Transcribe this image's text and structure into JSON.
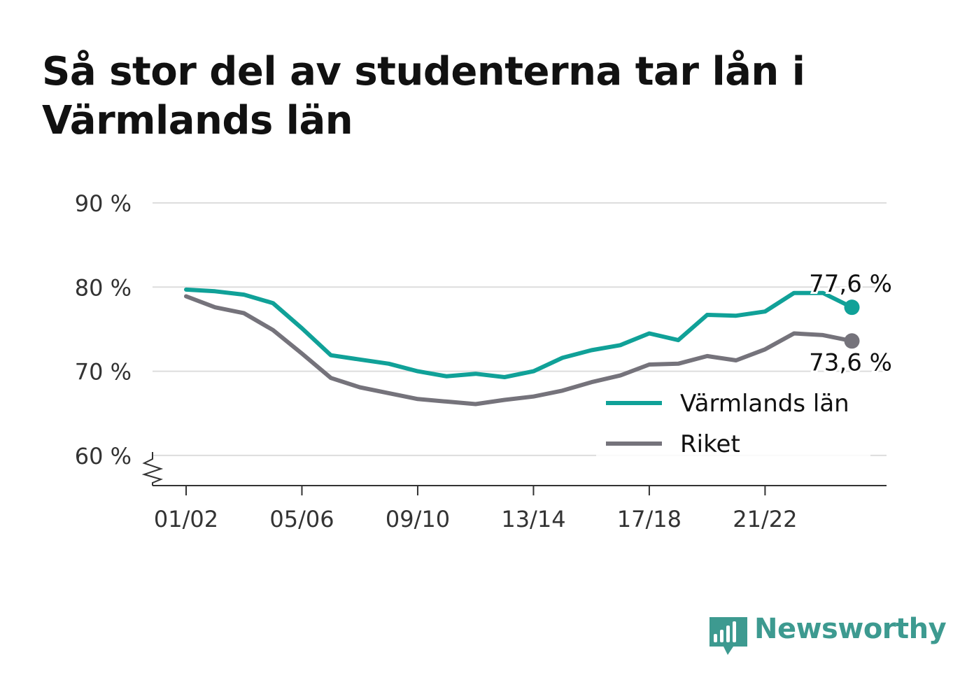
{
  "title": "Så stor del av studenterna tar lån i Värmlands län",
  "brand": "Newsworthy",
  "chart_data": {
    "type": "line",
    "title": "Så stor del av studenterna tar lån i Värmlands län",
    "x": [
      "01/02",
      "02/03",
      "03/04",
      "04/05",
      "05/06",
      "06/07",
      "07/08",
      "08/09",
      "09/10",
      "10/11",
      "11/12",
      "12/13",
      "13/14",
      "14/15",
      "15/16",
      "16/17",
      "17/18",
      "18/19",
      "19/20",
      "20/21",
      "21/22",
      "22/23",
      "23/24",
      "24/25"
    ],
    "x_tick_labels": [
      "01/02",
      "05/06",
      "09/10",
      "13/14",
      "17/18",
      "21/22"
    ],
    "y_tick_labels": [
      "60 %",
      "70 %",
      "80 %",
      "90 %"
    ],
    "y_ticks": [
      60,
      70,
      80,
      90
    ],
    "ylim": [
      56.5,
      90
    ],
    "y_axis_break": true,
    "grid": true,
    "legend_position": "bottom-right",
    "series": [
      {
        "name": "Värmlands län",
        "color": "#10a198",
        "values": [
          79.7,
          79.5,
          79.1,
          78.1,
          75.1,
          71.9,
          71.4,
          70.9,
          70.0,
          69.4,
          69.7,
          69.3,
          70.0,
          71.6,
          72.5,
          73.1,
          74.5,
          73.7,
          76.7,
          76.6,
          77.1,
          79.3,
          79.3,
          77.6
        ],
        "end_label": "77,6 %"
      },
      {
        "name": "Riket",
        "color": "#75737b",
        "values": [
          78.9,
          77.6,
          76.9,
          74.9,
          72.1,
          69.2,
          68.1,
          67.4,
          66.7,
          66.4,
          66.1,
          66.6,
          67.0,
          67.7,
          68.7,
          69.5,
          70.8,
          70.9,
          71.8,
          71.3,
          72.6,
          74.5,
          74.3,
          73.6
        ],
        "end_label": "73,6 %"
      }
    ]
  }
}
